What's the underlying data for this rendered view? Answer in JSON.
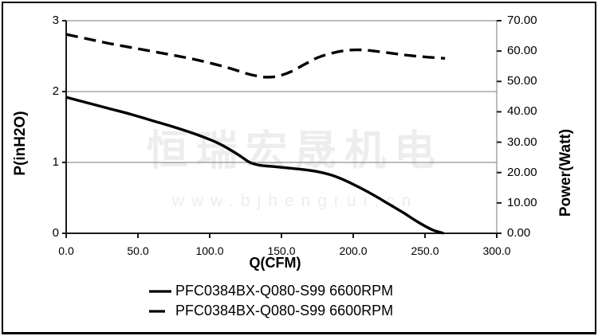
{
  "watermark": {
    "line1": "恒瑞宏晟机电",
    "line2": "www.bjhengrui.cn"
  },
  "chart_data": {
    "type": "line",
    "title": "",
    "xlabel": "Q(CFM)",
    "ylabel_left": "P(inH2O)",
    "ylabel_right": "Power(Watt)",
    "xlim": [
      0,
      300
    ],
    "ylim_left": [
      0,
      3
    ],
    "ylim_right": [
      0,
      70
    ],
    "x_tick_labels": [
      "0.0",
      "50.0",
      "100.0",
      "150.0",
      "200.0",
      "250.0",
      "300.0"
    ],
    "y_left_tick_labels": [
      "3",
      "2",
      "1",
      "0"
    ],
    "y_right_tick_labels": [
      "70.00",
      "60.00",
      "50.00",
      "40.00",
      "30.00",
      "20.00",
      "10.00",
      "0.00"
    ],
    "gridlines_at_left_values": [
      2,
      1
    ],
    "grid": "horizontal-only",
    "legend_position": "bottom-center",
    "series": [
      {
        "name": "PFC0384BX-Q080-S99 6600RPM",
        "line_style": "solid",
        "axis": "left",
        "unit": "inH2O",
        "x": [
          0,
          15,
          30,
          45,
          60,
          75,
          90,
          105,
          115,
          122,
          128,
          135,
          145,
          155,
          165,
          175,
          185,
          195,
          205,
          215,
          225,
          235,
          245,
          255,
          263
        ],
        "y": [
          1.92,
          1.84,
          1.76,
          1.68,
          1.59,
          1.5,
          1.4,
          1.28,
          1.17,
          1.08,
          1.0,
          0.96,
          0.94,
          0.92,
          0.9,
          0.87,
          0.82,
          0.74,
          0.64,
          0.53,
          0.41,
          0.29,
          0.16,
          0.05,
          0.0
        ]
      },
      {
        "name": "PFC0384BX-Q080-S99 6600RPM",
        "line_style": "dashed",
        "axis": "right",
        "unit": "Watt",
        "x": [
          0,
          15,
          30,
          45,
          60,
          75,
          90,
          105,
          115,
          125,
          133,
          140,
          148,
          157,
          166,
          175,
          185,
          195,
          205,
          215,
          228,
          240,
          252,
          264
        ],
        "y": [
          65.5,
          64.0,
          62.5,
          61.2,
          59.9,
          58.6,
          57.2,
          55.5,
          54.2,
          52.7,
          51.8,
          51.4,
          51.8,
          53.3,
          55.6,
          57.8,
          59.3,
          60.2,
          60.4,
          60.0,
          59.2,
          58.5,
          58.0,
          57.6
        ]
      }
    ]
  },
  "legend": {
    "items": [
      {
        "label": "PFC0384BX-Q080-S99 6600RPM",
        "swatch": "solid-line"
      },
      {
        "label": "PFC0384BX-Q080-S99 6600RPM",
        "swatch": "dashed-line"
      }
    ]
  },
  "colors": {
    "background": "#ffffff",
    "frame": "#000000",
    "line": "#000000",
    "grid": "#7a7a7a",
    "axis": "#1a1a1a",
    "watermark": "#ededed"
  }
}
